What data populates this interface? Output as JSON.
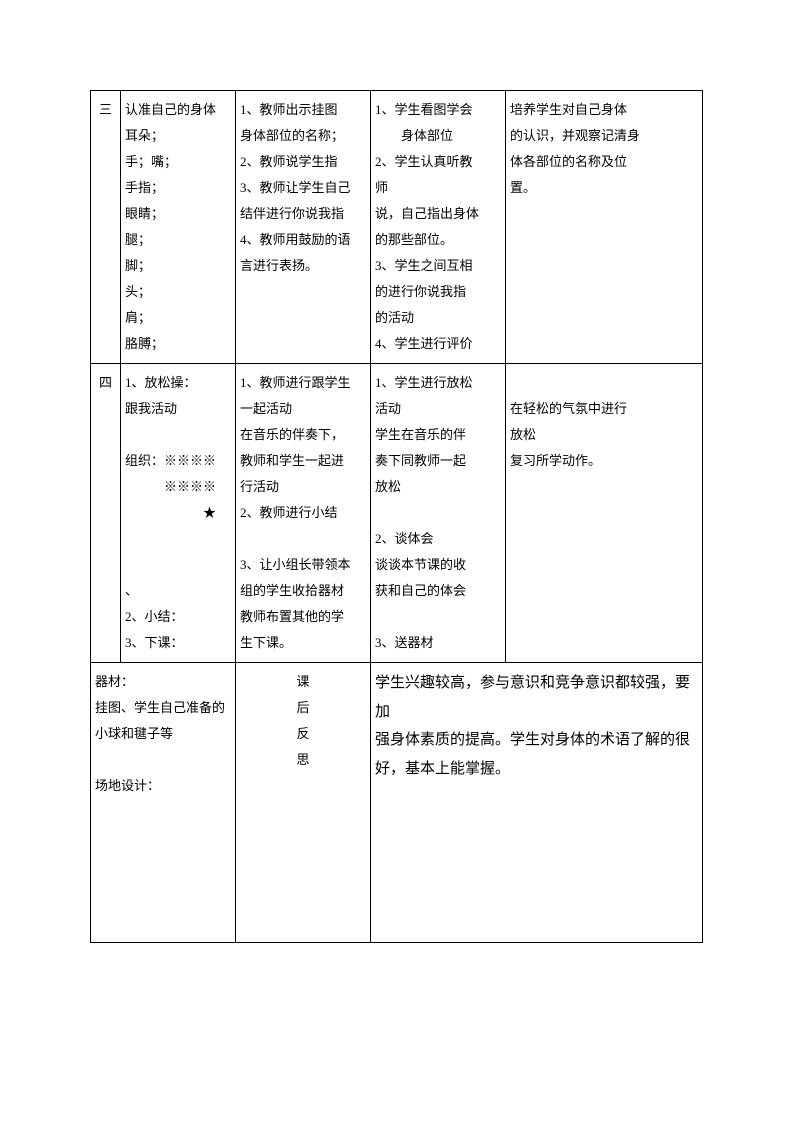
{
  "row3": {
    "num": "三",
    "colA": "认准自己的身体\n耳朵；\n手；嘴；\n手指；\n眼睛；\n腿；\n脚；\n头；\n肩；\n胳膊；",
    "colB": "1、教师出示挂图\n身体部位的名称；\n2、教师说学生指\n3、教师让学生自己\n结伴进行你说我指\n4、教师用鼓励的语\n言进行表扬。",
    "colC": "1、学生看图学会\n　　身体部位\n2、学生认真听教\n师\n说，自己指出身体\n的那些部位。\n3、学生之间互相\n的进行你说我指\n的活动\n4、学生进行评价",
    "colD": "培养学生对自己身体\n的认识，并观察记清身\n体各部位的名称及位\n置。"
  },
  "row4": {
    "num": "四",
    "colA": "1、放松操：\n跟我活动\n\n组织：※※※※\n　　　※※※※\n　　　　　　★\n\n\n、\n2、小结：\n3、下课：",
    "colB": "1、教师进行跟学生\n一起活动\n在音乐的伴奏下，\n教师和学生一起进\n行活动\n2、教师进行小结\n\n3、让小组长带领本\n组的学生收拾器材\n教师布置其他的学\n生下课。",
    "colC": "1、学生进行放松\n活动\n学生在音乐的伴\n奏下同教师一起\n放松\n\n2、谈体会\n谈谈本节课的收\n获和自己的体会\n\n3、送器材",
    "colD": "\n在轻松的气氛中进行\n放松\n复习所学动作。"
  },
  "bottom": {
    "left": "器材：\n挂图、学生自己准备的\n小球和毽子等\n\n场地设计：",
    "label1": "课",
    "label2": "后",
    "label3": "反",
    "label4": "思",
    "right": "学生兴趣较高，参与意识和竞争意识都较强，要加\n强身体素质的提高。学生对身体的术语了解的很\n好，基本上能掌握。"
  }
}
